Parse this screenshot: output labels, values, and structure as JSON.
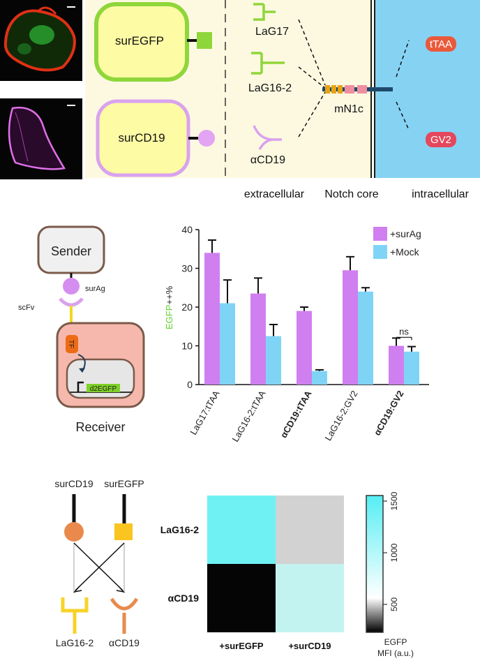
{
  "panel_a": {
    "surfaces": [
      "surEGFP",
      "surCD19"
    ],
    "binders": [
      "LaG17",
      "LaG16-2",
      "αCD19"
    ],
    "notch_label": "mN1c",
    "tf_labels": [
      "tTAA",
      "GV2"
    ],
    "regions": [
      "extracellular",
      "Notch core",
      "intracellular"
    ]
  },
  "panel_b": {
    "sender": "Sender",
    "antigen": "surAg",
    "scfv": "scFv",
    "tf": "TF",
    "reporter": "d2EGFP",
    "receiver": "Receiver"
  },
  "chart_data": {
    "type": "bar",
    "ylabel_colored": "EGFP",
    "ylabel_rest": "++%",
    "ylim": [
      0,
      40
    ],
    "yticks": [
      0,
      10,
      20,
      30,
      40
    ],
    "categories": [
      "LaG17:tTAA",
      "LaG16-2:tTAA",
      "αCD19:tTAA",
      "LaG16-2:GV2",
      "αCD19:GV2"
    ],
    "series": [
      {
        "name": "+surAg",
        "color": "#cf7ff0",
        "values": [
          34,
          23.5,
          19,
          29.5,
          10
        ],
        "errors": [
          3.3,
          4,
          1,
          3.5,
          2
        ]
      },
      {
        "name": "+Mock",
        "color": "#7fd4f6",
        "values": [
          21,
          12.5,
          3.5,
          24,
          8.5
        ],
        "errors": [
          6,
          3,
          0.3,
          1,
          1.3
        ]
      }
    ],
    "annotation": "ns",
    "legend": "top-right"
  },
  "panel_c": {
    "antigens": [
      "surCD19",
      "surEGFP"
    ],
    "binders": [
      "LaG16-2",
      "αCD19"
    ]
  },
  "heatmap": {
    "rows": [
      "LaG16-2",
      "αCD19"
    ],
    "cols": [
      "+surEGFP",
      "+surCD19"
    ],
    "cell_colors": [
      [
        "#6ff1f3",
        "#d2d2d2"
      ],
      [
        "#050505",
        "#c2f3f1"
      ]
    ],
    "colorbar_ticks": [
      "500",
      "1000",
      "1500"
    ],
    "colorbar_label": [
      "EGFP",
      "MFI (a.u.)"
    ]
  }
}
